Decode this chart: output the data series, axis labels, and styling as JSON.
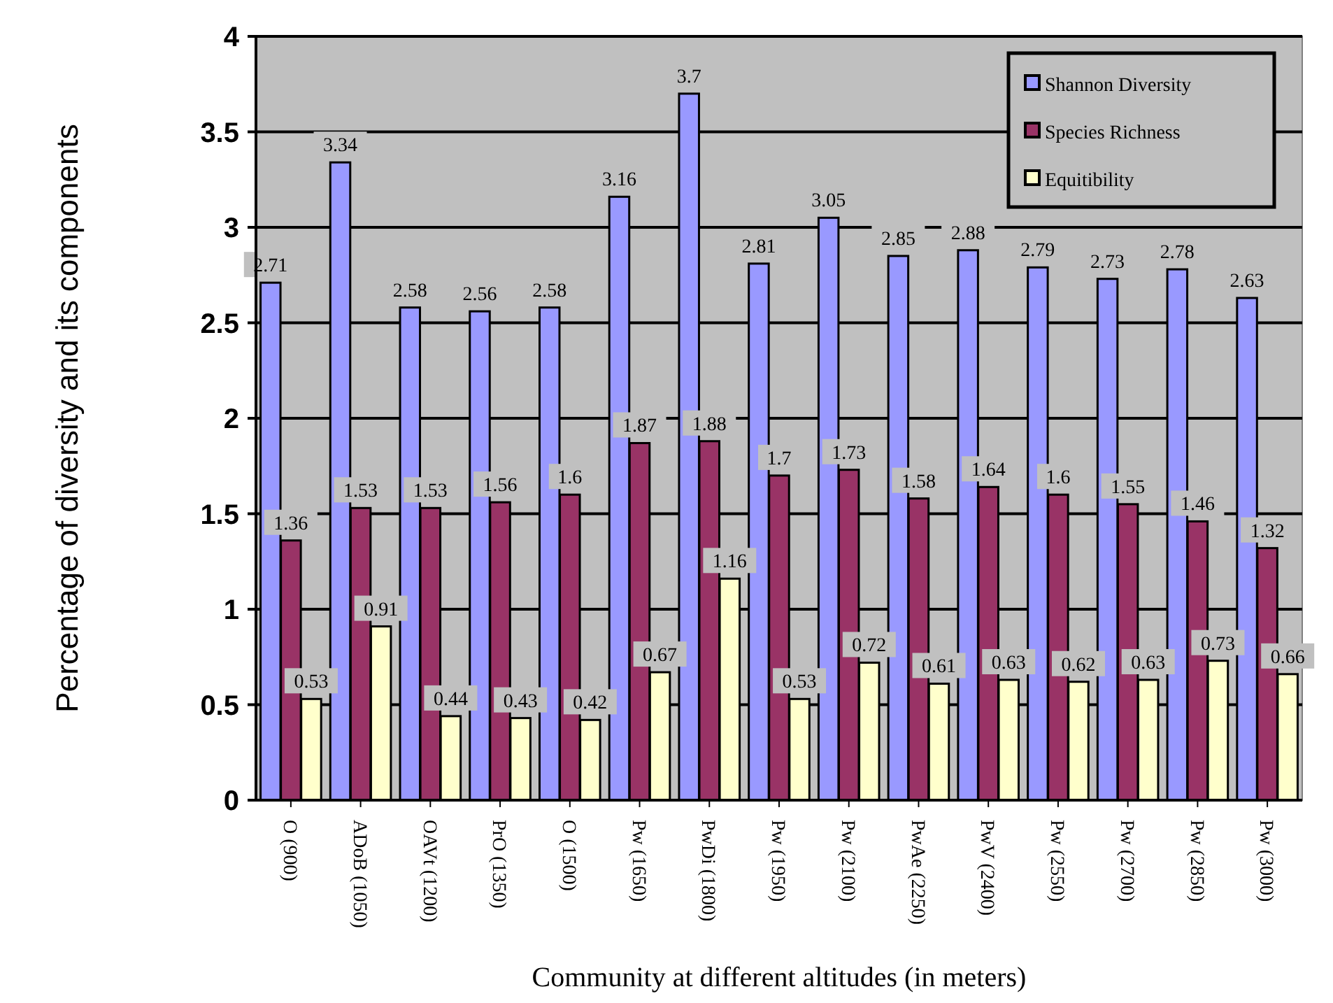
{
  "chart_data": {
    "type": "bar",
    "xlabel": "Community at different altitudes (in meters)",
    "ylabel": "Percentage of diversity and its components",
    "categories": [
      "O (900)",
      "ADoB (1050)",
      "OAVt (1200)",
      "PrO (1350)",
      "O (1500)",
      "Pw (1650)",
      "PwDi (1800)",
      "Pw (1950)",
      "Pw (2100)",
      "PwAe (2250)",
      "PwV (2400)",
      "Pw (2550)",
      "Pw (2700)",
      "Pw (2850)",
      "Pw (3000)"
    ],
    "series": [
      {
        "name": "Shannon Diversity",
        "color": "#9999ff",
        "values": [
          2.71,
          3.34,
          2.58,
          2.56,
          2.58,
          3.16,
          3.7,
          2.81,
          3.05,
          2.85,
          2.88,
          2.79,
          2.73,
          2.78,
          2.63
        ]
      },
      {
        "name": "Species Richness",
        "color": "#993366",
        "values": [
          1.36,
          1.53,
          1.53,
          1.56,
          1.6,
          1.87,
          1.88,
          1.7,
          1.73,
          1.58,
          1.64,
          1.6,
          1.55,
          1.46,
          1.32
        ]
      },
      {
        "name": "Equitibility",
        "color": "#ffffcc",
        "values": [
          0.53,
          0.91,
          0.44,
          0.43,
          0.42,
          0.67,
          1.16,
          0.53,
          0.72,
          0.61,
          0.63,
          0.62,
          0.63,
          0.73,
          0.66
        ]
      }
    ],
    "ylim": [
      0,
      4
    ],
    "yticks": [
      0,
      0.5,
      1,
      1.5,
      2,
      2.5,
      3,
      3.5,
      4
    ],
    "grid": "y",
    "legend": "top right",
    "data_labels": true
  }
}
